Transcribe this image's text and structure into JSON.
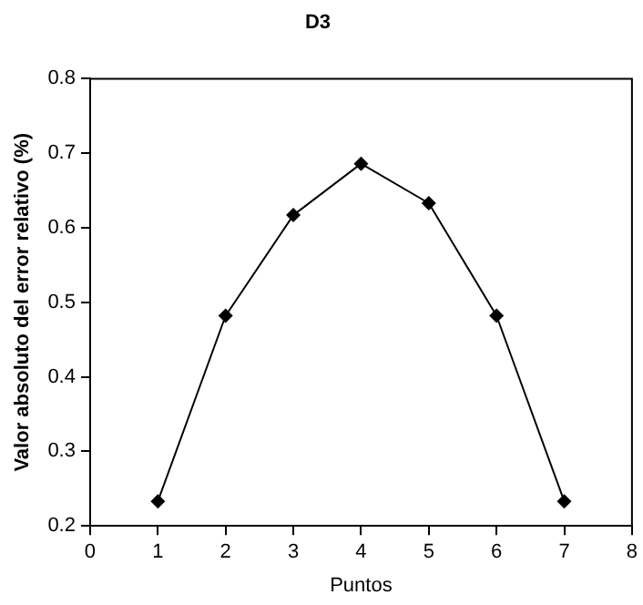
{
  "chart_data": {
    "type": "line",
    "title": "D3",
    "xlabel": "Puntos",
    "ylabel": "Valor absoluto del error relativo (%)",
    "x": [
      1,
      2,
      3,
      4,
      5,
      6,
      7
    ],
    "series": [
      {
        "color": "#000000",
        "values": [
          0.233,
          0.482,
          0.617,
          0.686,
          0.633,
          0.482,
          0.233
        ]
      }
    ],
    "xlim": [
      0,
      8
    ],
    "xticks": [
      0,
      1,
      2,
      3,
      4,
      5,
      6,
      7,
      8
    ],
    "ylim": [
      0.2,
      0.8
    ],
    "yticks": [
      0.2,
      0.3,
      0.4,
      0.5,
      0.6,
      0.7,
      0.8
    ],
    "grid": false,
    "legend": false,
    "marker": "diamond",
    "line_style": "solid"
  }
}
